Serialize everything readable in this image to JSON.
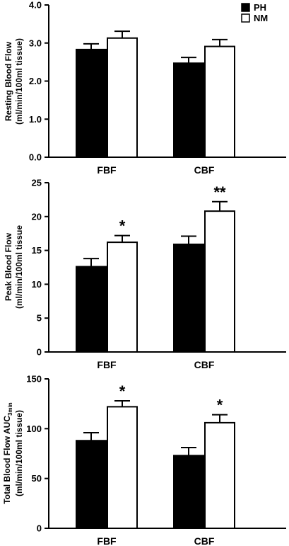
{
  "chart_data": [
    {
      "type": "bar",
      "categories": [
        "FBF",
        "CBF"
      ],
      "series": [
        {
          "name": "PH",
          "color": "#000000",
          "values": [
            2.83,
            2.47
          ],
          "errors": [
            0.15,
            0.15
          ]
        },
        {
          "name": "NM",
          "color": "#ffffff",
          "values": [
            3.13,
            2.91
          ],
          "errors": [
            0.18,
            0.18
          ]
        }
      ],
      "ylabel_line1": "Resting Blood Flow",
      "ylabel_line1_sub": "",
      "ylabel_line2": "(ml/min/100ml tissue)",
      "ylim": [
        0,
        4
      ],
      "yticks": [
        "0.0",
        "1.0",
        "2.0",
        "3.0",
        "4.0"
      ],
      "significance": [
        [
          "",
          ""
        ],
        [
          "",
          ""
        ]
      ],
      "legend": {
        "position": "top-right",
        "entries": [
          "PH",
          "NM"
        ]
      }
    },
    {
      "type": "bar",
      "categories": [
        "FBF",
        "CBF"
      ],
      "series": [
        {
          "name": "PH",
          "color": "#000000",
          "values": [
            12.6,
            15.9
          ],
          "errors": [
            1.2,
            1.2
          ]
        },
        {
          "name": "NM",
          "color": "#ffffff",
          "values": [
            16.2,
            20.8
          ],
          "errors": [
            1.0,
            1.4
          ]
        }
      ],
      "ylabel_line1": "Peak Blood Flow",
      "ylabel_line1_sub": "",
      "ylabel_line2": "(ml/min/100ml tissue",
      "ylim": [
        0,
        25
      ],
      "yticks": [
        "0",
        "5",
        "10",
        "15",
        "20",
        "25"
      ],
      "significance": [
        [
          "",
          "*"
        ],
        [
          "",
          "**"
        ]
      ]
    },
    {
      "type": "bar",
      "categories": [
        "FBF",
        "CBF"
      ],
      "series": [
        {
          "name": "PH",
          "color": "#000000",
          "values": [
            88,
            73
          ],
          "errors": [
            8,
            8
          ]
        },
        {
          "name": "NM",
          "color": "#ffffff",
          "values": [
            122,
            106
          ],
          "errors": [
            6,
            8
          ]
        }
      ],
      "ylabel_line1": "Total Blood Flow AUC",
      "ylabel_line1_sub": "3min",
      "ylabel_line2": "(ml/min/100ml tissue)",
      "ylim": [
        0,
        150
      ],
      "yticks": [
        "0",
        "50",
        "100",
        "150"
      ],
      "significance": [
        [
          "",
          "*"
        ],
        [
          "",
          "*"
        ]
      ]
    }
  ]
}
